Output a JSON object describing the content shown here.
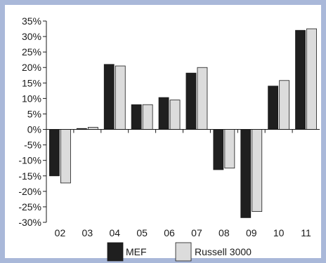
{
  "colors": {
    "frame": "#a9b8d9",
    "background": "#ffffff",
    "axis": "#1a1a1a",
    "mef_fill": "#1f1f1f",
    "russell_fill": "#dcdcdc",
    "bar_stroke": "#1a1a1a"
  },
  "chart_data": {
    "type": "bar",
    "title": "",
    "xlabel": "",
    "ylabel": "",
    "categories": [
      "02",
      "03",
      "04",
      "05",
      "06",
      "07",
      "08",
      "09",
      "10",
      "11"
    ],
    "series": [
      {
        "name": "MEF",
        "values": [
          -15.0,
          0.3,
          21.0,
          8.0,
          10.3,
          18.2,
          -13.0,
          -28.5,
          14.0,
          32.0
        ]
      },
      {
        "name": "Russell 3000",
        "values": [
          -17.3,
          0.7,
          20.5,
          8.0,
          9.5,
          20.0,
          -12.5,
          -26.5,
          15.8,
          32.5
        ]
      }
    ],
    "ylim": [
      -30,
      35
    ],
    "yticks": [
      35,
      30,
      25,
      20,
      15,
      10,
      5,
      0,
      -5,
      -10,
      -15,
      -20,
      -25,
      -30
    ],
    "ytick_labels": [
      "35%",
      "30%",
      "25%",
      "20%",
      "15%",
      "10%",
      "5%",
      "0%",
      "-5%",
      "-10%",
      "-15%",
      "-20%",
      "-25%",
      "-30%"
    ],
    "grid": false,
    "legend": {
      "placement": "bottom",
      "items": [
        {
          "label": "MEF",
          "color": "#1f1f1f"
        },
        {
          "label": "Russell 3000",
          "color": "#dcdcdc"
        }
      ]
    }
  }
}
